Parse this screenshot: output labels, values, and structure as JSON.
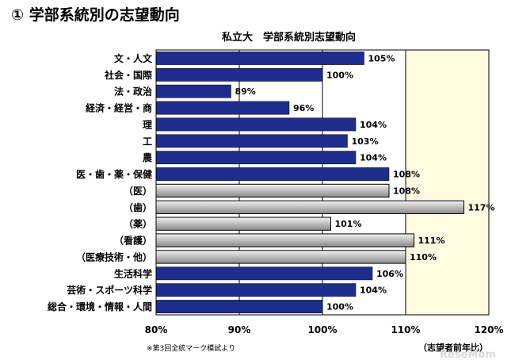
{
  "page": {
    "heading": "① 学部系統別の志望動向",
    "footnote": "※第3回全統マーク模試より",
    "source": "（志望者前年比）",
    "watermark": "ReseMom"
  },
  "chart_data": {
    "type": "bar",
    "orientation": "horizontal",
    "title": "私立大　学部系統別志望動向",
    "xlabel": "",
    "ylabel": "",
    "xlim": [
      80,
      120
    ],
    "xticks": [
      80,
      90,
      100,
      110,
      120
    ],
    "tick_suffix": "%",
    "highlight_region": [
      110,
      120
    ],
    "grid": false,
    "categories": [
      "文・人文",
      "社会・国際",
      "法・政治",
      "経済・経営・商",
      "理",
      "工",
      "農",
      "医・歯・薬・保健",
      "（医）",
      "（歯）",
      "（薬）",
      "（看護）",
      "（医療技術・他）",
      "生活科学",
      "芸術・スポーツ科学",
      "総合・環境・情報・人間"
    ],
    "values": [
      105,
      100,
      89,
      96,
      104,
      103,
      104,
      108,
      108,
      117,
      101,
      111,
      110,
      106,
      104,
      100
    ],
    "data_labels": [
      "105%",
      "100%",
      "89%",
      "96%",
      "104%",
      "103%",
      "104%",
      "108%",
      "108%",
      "117%",
      "101%",
      "111%",
      "110%",
      "106%",
      "104%",
      "100%"
    ],
    "bar_style": [
      "navy",
      "navy",
      "navy",
      "navy",
      "navy",
      "navy",
      "navy",
      "navy",
      "gray",
      "gray",
      "gray",
      "gray",
      "gray",
      "navy",
      "navy",
      "navy"
    ],
    "colors": {
      "navy": "#1f2d8c",
      "gray": "#bdbdbd",
      "plot_background": "#ffffff",
      "highlight": "#fffbe0"
    }
  }
}
